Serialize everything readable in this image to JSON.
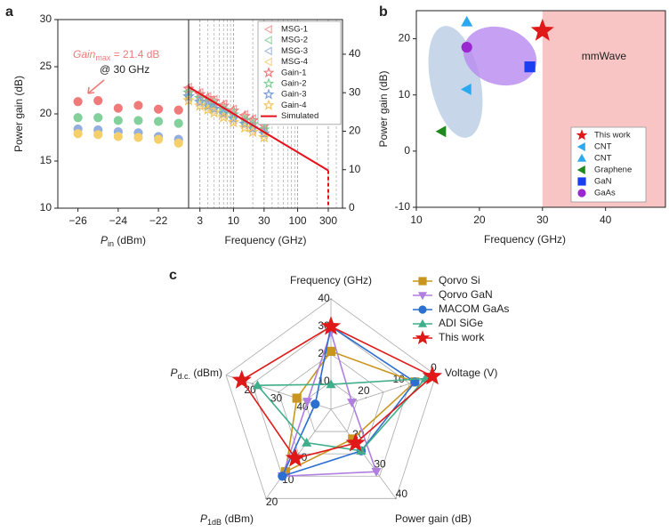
{
  "chart_data": [
    {
      "type": "scatter",
      "panel": "a",
      "marker": "circle",
      "y_label": "Power gain (dB)",
      "x_label": {
        "main": "P",
        "sub": "in",
        "rest": " (dBm)"
      },
      "annotation": {
        "main": "Gain",
        "sub": "max",
        "rest": " = 21.4 dB",
        "line2": "@ 30 GHz",
        "color": "#f07a7a"
      },
      "x": [
        -26,
        -25,
        -24,
        -23,
        -22,
        -21
      ],
      "series": [
        {
          "name": "Gain-1",
          "color": "#f07a7a",
          "values": [
            21.3,
            21.4,
            20.6,
            20.9,
            20.5,
            20.4
          ]
        },
        {
          "name": "Gain-2",
          "color": "#82d09c",
          "values": [
            19.6,
            19.6,
            19.3,
            19.3,
            19.2,
            19.0
          ]
        },
        {
          "name": "Gain-3",
          "color": "#93aee0",
          "values": [
            18.4,
            18.3,
            18.1,
            18.0,
            17.6,
            17.3
          ]
        },
        {
          "name": "Gain-4",
          "color": "#f5cf6a",
          "values": [
            17.9,
            17.8,
            17.6,
            17.5,
            17.3,
            16.9
          ]
        }
      ],
      "xlim": [
        -27,
        -20.5
      ],
      "xticks": [
        {
          "value": -26,
          "label": "−26"
        },
        {
          "value": -24,
          "label": "−24"
        },
        {
          "value": -22,
          "label": "−22"
        }
      ],
      "ylim": [
        10,
        30
      ],
      "yticks": [
        10,
        15,
        20,
        25,
        30
      ],
      "grid": false
    },
    {
      "type": "line",
      "log_x": true,
      "x_label": "Frequency (GHz)",
      "x": [
        2,
        3,
        4,
        5,
        7,
        10,
        15,
        20,
        30
      ],
      "series": [
        {
          "name": "MSG-1",
          "color": "#f4a0a0",
          "marker": "triangle-left",
          "values": [
            31.5,
            30.1,
            29.1,
            28.3,
            27.1,
            25.8,
            24.4,
            23.3,
            21.9
          ]
        },
        {
          "name": "MSG-2",
          "color": "#9ed6b0",
          "marker": "triangle-left",
          "values": [
            30.5,
            29.1,
            28.1,
            27.3,
            26.1,
            24.8,
            23.4,
            22.3,
            20.9
          ]
        },
        {
          "name": "MSG-3",
          "color": "#a8bde0",
          "marker": "triangle-left",
          "values": [
            29.5,
            28.1,
            27.1,
            26.3,
            25.1,
            23.8,
            22.4,
            21.3,
            19.9
          ]
        },
        {
          "name": "MSG-4",
          "color": "#f5d58a",
          "marker": "triangle-left",
          "values": [
            28.5,
            27.1,
            26.1,
            25.3,
            24.1,
            22.8,
            21.4,
            20.3,
            18.9
          ]
        },
        {
          "name": "Gain-1",
          "color": "#f07a7a",
          "marker": "star",
          "values": [
            31.0,
            29.6,
            28.6,
            27.8,
            26.6,
            25.3,
            23.9,
            22.8,
            21.4
          ]
        },
        {
          "name": "Gain-2",
          "color": "#7ccf95",
          "marker": "star",
          "values": [
            30.0,
            28.6,
            27.6,
            26.8,
            25.6,
            24.3,
            22.9,
            21.8,
            20.4
          ]
        },
        {
          "name": "Gain-3",
          "color": "#7e9fd6",
          "marker": "star",
          "values": [
            29.0,
            27.6,
            26.6,
            25.8,
            24.6,
            23.3,
            21.9,
            20.8,
            19.4
          ]
        },
        {
          "name": "Gain-4",
          "color": "#f2c660",
          "marker": "star",
          "values": [
            28.0,
            26.6,
            25.6,
            24.8,
            23.6,
            22.3,
            20.9,
            19.8,
            18.4
          ]
        },
        {
          "name": "Simulated",
          "color": "#e8101c",
          "x": [
            2,
            300
          ],
          "values": [
            31.5,
            9.8
          ]
        }
      ],
      "xlim": [
        2,
        500
      ],
      "xticks": [
        3,
        10,
        30,
        100,
        300
      ],
      "xticks_minor": [
        2,
        4,
        5,
        6,
        7,
        8,
        9,
        20,
        40,
        50,
        60,
        70,
        80,
        90,
        200,
        400
      ],
      "ylim": [
        0,
        49
      ],
      "yticks": [
        0,
        10,
        20,
        30,
        40
      ],
      "y_axis_side": "right",
      "grid": true,
      "legend": "upper right"
    },
    {
      "type": "scatter",
      "panel": "b",
      "x_label": "Frequency (GHz)",
      "y_label": "Power gain (dB)",
      "xlim": [
        10,
        49.5
      ],
      "xticks": [
        10,
        20,
        30,
        40
      ],
      "ylim": [
        -10,
        25
      ],
      "yticks": [
        -10,
        0,
        10,
        20
      ],
      "region": {
        "from": 30,
        "label": "mmWave",
        "color": "#f9c4c4"
      },
      "legend": "lower right",
      "series": [
        {
          "name": "This work",
          "color": "#e01818",
          "marker": "star",
          "x": [
            30
          ],
          "values": [
            21.4
          ]
        },
        {
          "name": "CNT",
          "color": "#2aa8f0",
          "marker": "triangle-left",
          "x": [
            18
          ],
          "values": [
            11
          ]
        },
        {
          "name": "CNT",
          "color": "#2aa8f0",
          "marker": "triangle-up",
          "x": [
            18
          ],
          "values": [
            23
          ]
        },
        {
          "name": "Graphene",
          "color": "#1e8a1e",
          "marker": "triangle-left",
          "x": [
            14
          ],
          "values": [
            3.5
          ]
        },
        {
          "name": "GaN",
          "color": "#1a3ef0",
          "marker": "square",
          "x": [
            28
          ],
          "values": [
            15
          ]
        },
        {
          "name": "GaAs",
          "color": "#9a28d0",
          "marker": "circle",
          "x": [
            18
          ],
          "values": [
            18.5
          ]
        }
      ]
    },
    {
      "type": "radar",
      "panel": "c",
      "axes": [
        {
          "label": "Frequency (GHz)",
          "range": [
            0,
            40
          ],
          "ticks": [
            10,
            20,
            30,
            40
          ]
        },
        {
          "label": "Voltage (V)",
          "range": [
            30,
            0
          ],
          "ticks": [
            0,
            10,
            20
          ]
        },
        {
          "label": "Power gain (dB)",
          "range": [
            10,
            40
          ],
          "ticks": [
            20,
            30,
            40
          ]
        },
        {
          "label": {
            "main": "P",
            "sub": "1dB",
            "rest": " (dBm)"
          },
          "range": [
            -20,
            20
          ],
          "ticks": [
            0,
            10,
            20
          ]
        },
        {
          "label": {
            "main": "P",
            "sub": "d.c.",
            "rest": " (dBm)"
          },
          "range": [
            50,
            10
          ],
          "ticks": [
            20,
            30,
            40
          ]
        }
      ],
      "series": [
        {
          "name": "Qorvo Si",
          "color": "#c8961e",
          "marker": "square",
          "values": [
            21,
            6,
            20,
            8,
            37
          ]
        },
        {
          "name": "Qorvo GaN",
          "color": "#b07fe0",
          "marker": "triangle-down",
          "values": [
            28,
            24,
            31,
            10,
            41
          ]
        },
        {
          "name": "MACOM GaAs",
          "color": "#2b6fd0",
          "marker": "circle",
          "values": [
            30,
            6,
            24,
            10,
            44
          ]
        },
        {
          "name": "ADI SiGe",
          "color": "#3fae8a",
          "marker": "triangle-up",
          "values": [
            9,
            3,
            24,
            -5,
            22
          ]
        },
        {
          "name": "This work",
          "color": "#e01818",
          "marker": "star",
          "values": [
            30,
            1,
            21.4,
            2,
            16
          ]
        }
      ]
    }
  ]
}
